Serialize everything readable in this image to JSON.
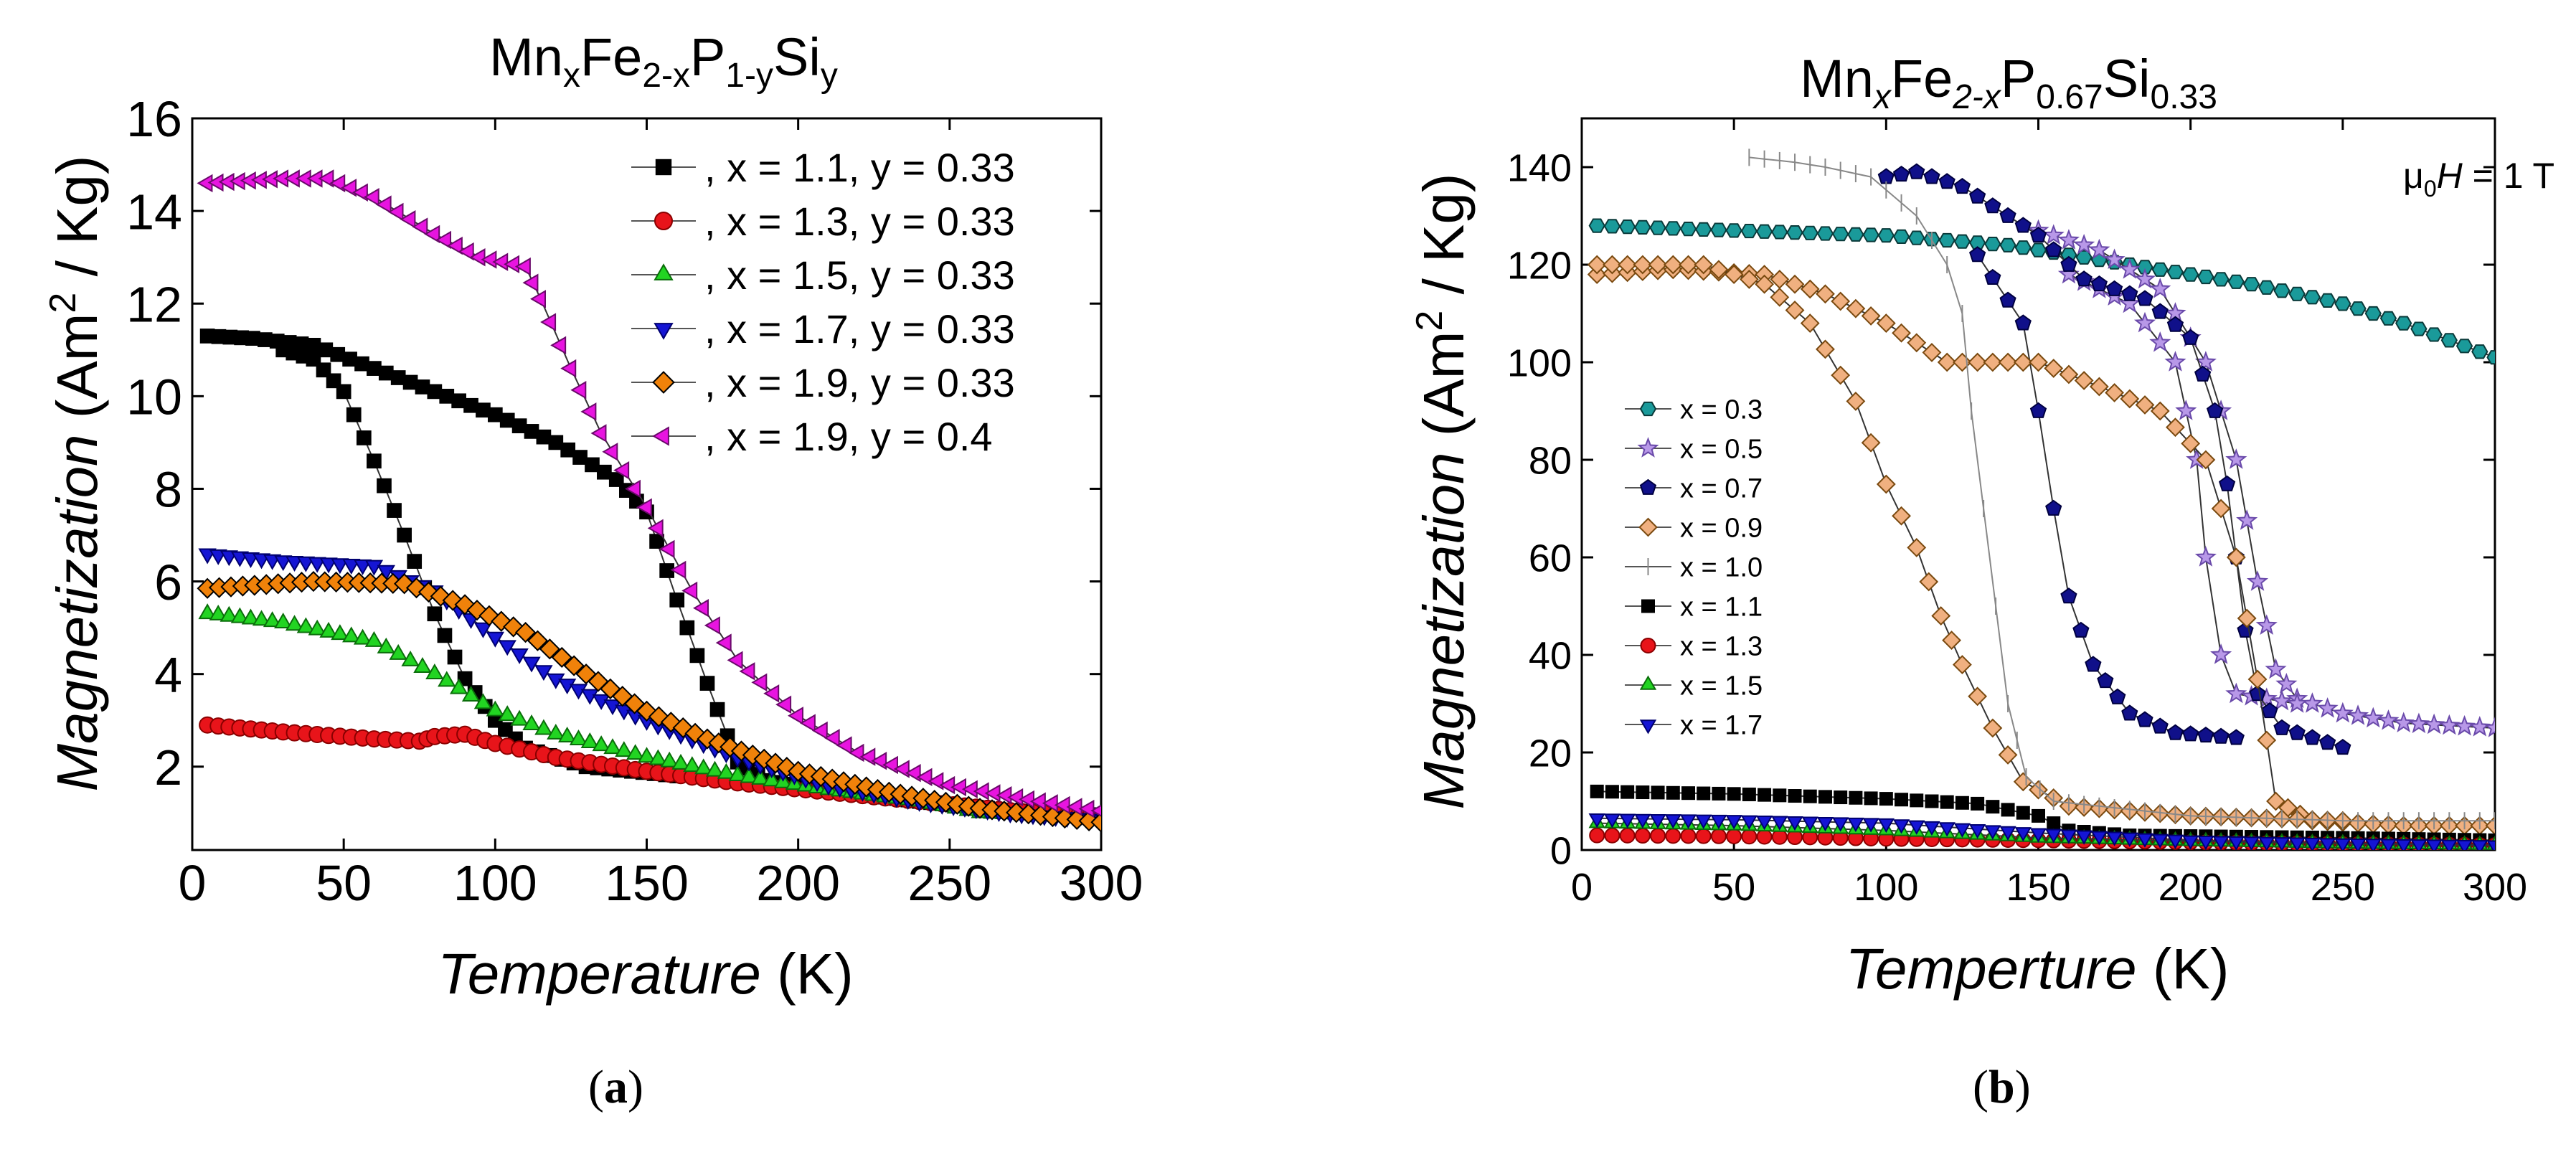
{
  "panels": {
    "a": {
      "label": "a",
      "title": {
        "base": "Mn",
        "sub1": "x",
        "mid1": "Fe",
        "sub2": "2-x",
        "mid2": "P",
        "sub3": "1-y",
        "mid3": "Si",
        "sub4": "y"
      },
      "xlabel": {
        "italic": "Temperature",
        "rest": " (K)"
      },
      "ylabel": {
        "italic": "Magnetization",
        "rest1": " (Am",
        "sup": "2",
        "rest2": " / Kg)"
      },
      "annotation": ""
    },
    "b": {
      "label": "b",
      "title": {
        "base": "Mn",
        "sub1": "x",
        "mid1": "Fe",
        "sub2": "2-x",
        "mid2": "P",
        "sub3": "0.67",
        "mid3": "Si",
        "sub4": "0.33"
      },
      "xlabel": {
        "italic": "Temperture",
        "rest": " (K)"
      },
      "ylabel": {
        "italic": "Magnetization",
        "rest1": " (Am",
        "sup": "2",
        "rest2": " / Kg)"
      },
      "annotation": {
        "mu": "μ",
        "sub": "0",
        "H": "H",
        "rest": " = 1 T"
      }
    }
  },
  "chart_data": [
    {
      "type": "line",
      "panel": "a",
      "xlim": [
        0,
        300
      ],
      "ylim": [
        0.2,
        16
      ],
      "xticks": [
        0,
        50,
        100,
        150,
        200,
        250,
        300
      ],
      "yticks": [
        2,
        4,
        6,
        8,
        10,
        12,
        14,
        16
      ],
      "legend_position": "top-right",
      "series": [
        {
          "name": ", x = 1.1, y = 0.33",
          "marker": "square",
          "color": "#000000",
          "edge": "#000000",
          "heating": [
            [
              5,
              11.3
            ],
            [
              20,
              11.25
            ],
            [
              40,
              11.1
            ],
            [
              60,
              10.6
            ],
            [
              80,
              10.1
            ],
            [
              100,
              9.6
            ],
            [
              120,
              9.0
            ],
            [
              140,
              8.2
            ],
            [
              150,
              7.5
            ],
            [
              160,
              5.6
            ],
            [
              170,
              3.8
            ],
            [
              180,
              2.1
            ],
            [
              190,
              1.7
            ],
            [
              210,
              1.5
            ],
            [
              240,
              1.25
            ],
            [
              270,
              1.05
            ],
            [
              300,
              0.95
            ]
          ],
          "cooling": [
            [
              30,
              11.0
            ],
            [
              40,
              10.8
            ],
            [
              50,
              10.1
            ],
            [
              60,
              8.6
            ],
            [
              70,
              7.0
            ],
            [
              80,
              5.3
            ],
            [
              90,
              3.9
            ],
            [
              100,
              3.0
            ],
            [
              110,
              2.4
            ],
            [
              130,
              2.0
            ],
            [
              160,
              1.8
            ]
          ]
        },
        {
          "name": ", x = 1.3, y = 0.33",
          "marker": "circle",
          "color": "#e8141a",
          "edge": "#8a0000",
          "heating": [
            [
              5,
              2.9
            ],
            [
              30,
              2.75
            ],
            [
              60,
              2.6
            ],
            [
              75,
              2.55
            ],
            [
              80,
              2.65
            ],
            [
              90,
              2.7
            ],
            [
              100,
              2.5
            ],
            [
              120,
              2.2
            ],
            [
              150,
              1.9
            ],
            [
              180,
              1.65
            ],
            [
              210,
              1.45
            ],
            [
              240,
              1.25
            ],
            [
              270,
              1.05
            ],
            [
              300,
              0.9
            ]
          ]
        },
        {
          "name": ", x = 1.5, y = 0.33",
          "marker": "triangle-up",
          "color": "#22d422",
          "edge": "#0a6e0a",
          "heating": [
            [
              5,
              5.3
            ],
            [
              30,
              5.1
            ],
            [
              60,
              4.7
            ],
            [
              80,
              4.0
            ],
            [
              100,
              3.2
            ],
            [
              120,
              2.7
            ],
            [
              150,
              2.2
            ],
            [
              180,
              1.8
            ],
            [
              210,
              1.5
            ],
            [
              240,
              1.25
            ],
            [
              260,
              1.0
            ],
            [
              280,
              0.95
            ],
            [
              300,
              0.9
            ]
          ]
        },
        {
          "name": ", x = 1.7, y = 0.33",
          "marker": "triangle-down",
          "color": "#1515d4",
          "edge": "#000070",
          "heating": [
            [
              5,
              6.6
            ],
            [
              30,
              6.45
            ],
            [
              60,
              6.35
            ],
            [
              80,
              5.8
            ],
            [
              100,
              4.8
            ],
            [
              120,
              3.9
            ],
            [
              150,
              3.0
            ],
            [
              180,
              2.2
            ],
            [
              210,
              1.6
            ],
            [
              240,
              1.25
            ],
            [
              270,
              1.0
            ],
            [
              300,
              0.85
            ]
          ]
        },
        {
          "name": ", x = 1.9, y = 0.33",
          "marker": "diamond",
          "color": "#f0820a",
          "edge": "#000000",
          "heating": [
            [
              5,
              5.85
            ],
            [
              40,
              6.0
            ],
            [
              70,
              5.95
            ],
            [
              90,
              5.5
            ],
            [
              110,
              4.9
            ],
            [
              130,
              4.0
            ],
            [
              150,
              3.2
            ],
            [
              170,
              2.6
            ],
            [
              200,
              1.9
            ],
            [
              230,
              1.45
            ],
            [
              260,
              1.1
            ],
            [
              300,
              0.8
            ]
          ]
        },
        {
          "name": ", x = 1.9, y = 0.4",
          "marker": "triangle-left",
          "color": "#e814e0",
          "edge": "#6a0a6a",
          "heating": [
            [
              5,
              14.6
            ],
            [
              30,
              14.7
            ],
            [
              45,
              14.7
            ],
            [
              60,
              14.3
            ],
            [
              80,
              13.5
            ],
            [
              95,
              13.0
            ],
            [
              110,
              12.8
            ],
            [
              115,
              12.1
            ],
            [
              125,
              10.6
            ],
            [
              135,
              9.2
            ],
            [
              150,
              7.6
            ],
            [
              165,
              5.8
            ],
            [
              180,
              4.3
            ],
            [
              200,
              3.1
            ],
            [
              220,
              2.3
            ],
            [
              250,
              1.6
            ],
            [
              280,
              1.25
            ],
            [
              300,
              1.05
            ]
          ]
        }
      ]
    },
    {
      "type": "line",
      "panel": "b",
      "xlim": [
        0,
        300
      ],
      "ylim": [
        0,
        150
      ],
      "xticks": [
        0,
        50,
        100,
        150,
        200,
        250,
        300
      ],
      "yticks": [
        0,
        20,
        40,
        60,
        80,
        100,
        120,
        140
      ],
      "legend_position": "middle-left",
      "series": [
        {
          "name": "x = 0.3",
          "marker": "hexagon",
          "color": "#1a9a9a",
          "edge": "#0a3a3a",
          "heating": [
            [
              5,
              128
            ],
            [
              50,
              127
            ],
            [
              100,
              126
            ],
            [
              140,
              124
            ],
            [
              180,
              120
            ],
            [
              220,
              116
            ],
            [
              250,
              112
            ],
            [
              270,
              108
            ],
            [
              300,
              101
            ]
          ]
        },
        {
          "name": "x = 0.5",
          "marker": "star",
          "color": "#b898e8",
          "edge": "#6a4aaa",
          "heating": [
            [
              150,
              127
            ],
            [
              170,
              123
            ],
            [
              190,
              115
            ],
            [
              205,
              100
            ],
            [
              215,
              80
            ],
            [
              222,
              55
            ],
            [
              228,
              37
            ],
            [
              235,
              31
            ],
            [
              250,
              28
            ],
            [
              270,
              26
            ],
            [
              300,
              25
            ]
          ],
          "cooling": [
            [
              160,
              118
            ],
            [
              180,
              112
            ],
            [
              195,
              100
            ],
            [
              202,
              80
            ],
            [
              205,
              60
            ],
            [
              210,
              40
            ],
            [
              215,
              32
            ],
            [
              235,
              30
            ]
          ]
        },
        {
          "name": "x = 0.7",
          "marker": "pentagon",
          "color": "#10108a",
          "edge": "#000040",
          "heating": [
            [
              100,
              138
            ],
            [
              110,
              139
            ],
            [
              125,
              136
            ],
            [
              140,
              130
            ],
            [
              150,
              126
            ],
            [
              165,
              117
            ],
            [
              185,
              113
            ],
            [
              200,
              105
            ],
            [
              208,
              90
            ],
            [
              212,
              75
            ],
            [
              215,
              60
            ],
            [
              218,
              45
            ],
            [
              222,
              32
            ],
            [
              230,
              25
            ],
            [
              250,
              21
            ]
          ],
          "cooling": [
            [
              130,
              122
            ],
            [
              145,
              108
            ],
            [
              150,
              90
            ],
            [
              155,
              70
            ],
            [
              160,
              52
            ],
            [
              168,
              38
            ],
            [
              180,
              28
            ],
            [
              195,
              24
            ],
            [
              215,
              23
            ]
          ]
        },
        {
          "name": "x = 0.9",
          "marker": "diamond",
          "color": "#f0b080",
          "edge": "#7a4a10",
          "heating": [
            [
              5,
              118
            ],
            [
              30,
              119
            ],
            [
              60,
              118
            ],
            [
              80,
              114
            ],
            [
              100,
              108
            ],
            [
              120,
              100
            ],
            [
              150,
              100
            ],
            [
              170,
              95
            ],
            [
              190,
              90
            ],
            [
              205,
              80
            ],
            [
              215,
              60
            ],
            [
              222,
              35
            ],
            [
              228,
              10
            ],
            [
              240,
              6
            ],
            [
              270,
              5
            ],
            [
              300,
              5
            ]
          ],
          "cooling": [
            [
              5,
              120
            ],
            [
              40,
              120
            ],
            [
              60,
              116
            ],
            [
              75,
              108
            ],
            [
              90,
              92
            ],
            [
              100,
              75
            ],
            [
              110,
              62
            ],
            [
              118,
              48
            ],
            [
              125,
              38
            ],
            [
              135,
              25
            ],
            [
              145,
              14
            ],
            [
              160,
              9
            ],
            [
              200,
              7
            ],
            [
              250,
              6
            ]
          ]
        },
        {
          "name": "x = 1.0",
          "marker": "tick",
          "color": "#888888",
          "edge": "#888888",
          "heating": [
            [
              55,
              142
            ],
            [
              70,
              141
            ],
            [
              80,
              140
            ],
            [
              95,
              138
            ],
            [
              110,
              130
            ],
            [
              120,
              120
            ],
            [
              125,
              110
            ],
            [
              128,
              90
            ],
            [
              132,
              70
            ],
            [
              136,
              50
            ],
            [
              140,
              30
            ],
            [
              146,
              15
            ],
            [
              155,
              10
            ],
            [
              200,
              7
            ],
            [
              250,
              6
            ],
            [
              300,
              6
            ]
          ]
        },
        {
          "name": "x = 1.1",
          "marker": "square",
          "color": "#000000",
          "edge": "#000000",
          "heating": [
            [
              5,
              12
            ],
            [
              50,
              11.5
            ],
            [
              100,
              10.5
            ],
            [
              130,
              9.5
            ],
            [
              150,
              7
            ],
            [
              160,
              4
            ],
            [
              180,
              3
            ],
            [
              250,
              2.5
            ],
            [
              300,
              2
            ]
          ]
        },
        {
          "name": "x = 1.3",
          "marker": "circle",
          "color": "#e8141a",
          "edge": "#8a0000",
          "heating": [
            [
              5,
              3
            ],
            [
              50,
              2.8
            ],
            [
              75,
              2.6
            ],
            [
              100,
              2.3
            ],
            [
              150,
              2.0
            ],
            [
              200,
              1.6
            ],
            [
              250,
              1.2
            ],
            [
              300,
              1.0
            ]
          ]
        },
        {
          "name": "x = 1.5",
          "marker": "triangle-up",
          "color": "#22d422",
          "edge": "#0a6e0a",
          "heating": [
            [
              5,
              5.5
            ],
            [
              50,
              5
            ],
            [
              100,
              4
            ],
            [
              150,
              2.5
            ],
            [
              200,
              1.8
            ],
            [
              250,
              1.3
            ],
            [
              300,
              1.0
            ]
          ]
        },
        {
          "name": "x = 1.7",
          "marker": "triangle-down",
          "color": "#1515d4",
          "edge": "#000070",
          "heating": [
            [
              5,
              6.5
            ],
            [
              50,
              6.2
            ],
            [
              100,
              5.5
            ],
            [
              150,
              3.5
            ],
            [
              200,
              2
            ],
            [
              250,
              1.4
            ],
            [
              300,
              1.0
            ]
          ]
        }
      ]
    }
  ]
}
